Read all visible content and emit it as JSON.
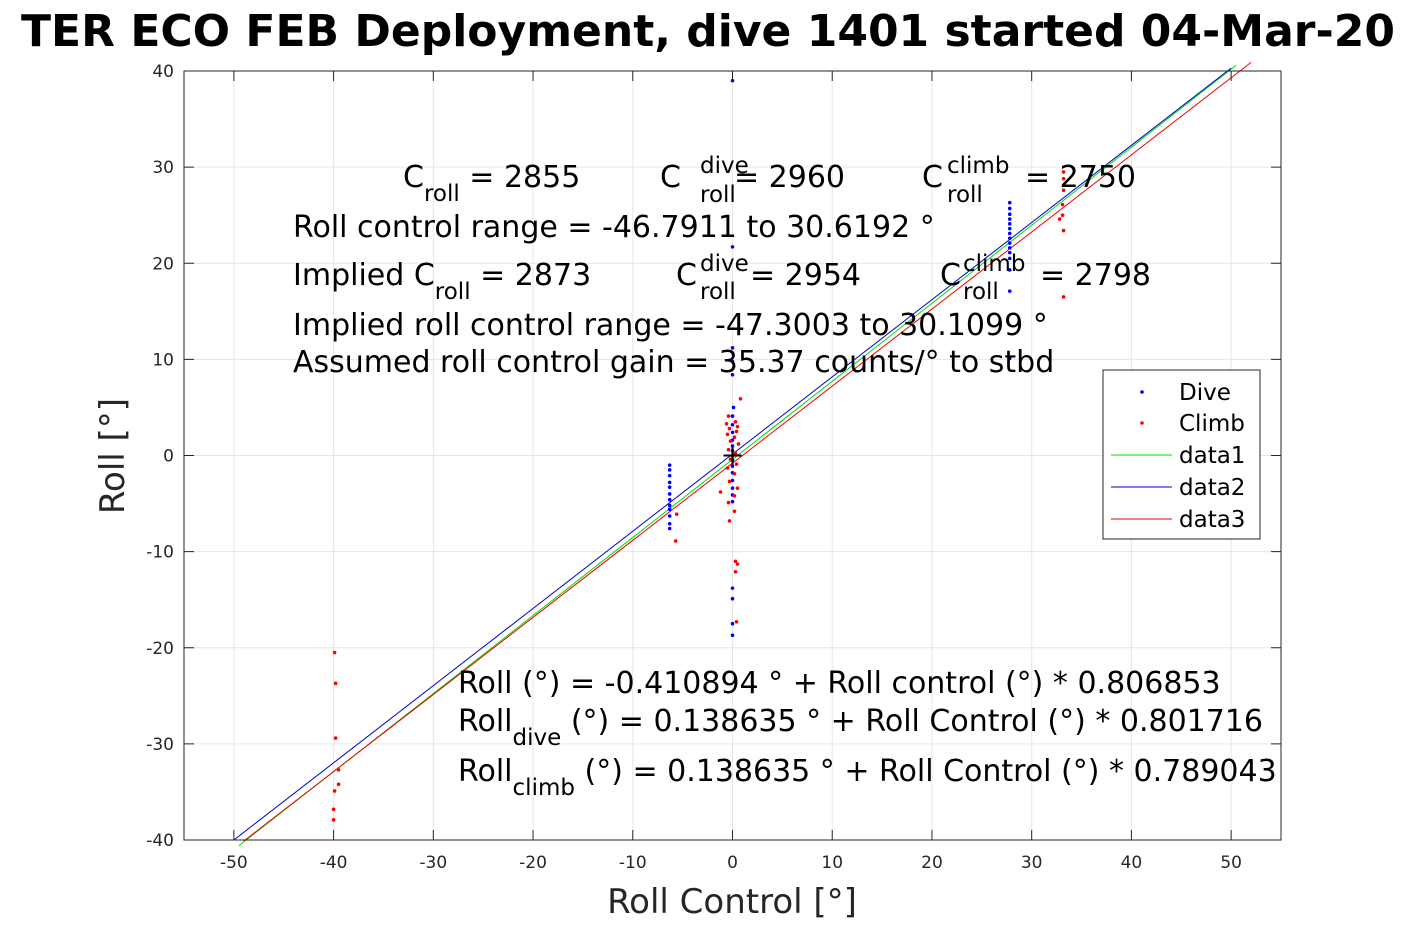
{
  "chart_data": {
    "type": "scatter",
    "title": "TER ECO FEB Deployment, dive 1401 started 04-Mar-20",
    "xlabel": "Roll Control [°]",
    "ylabel": "Roll [°]",
    "xlim": [
      -55,
      55
    ],
    "ylim": [
      -40,
      40
    ],
    "xticks": [
      -50,
      -40,
      -30,
      -20,
      -10,
      0,
      10,
      20,
      30,
      40,
      50
    ],
    "yticks": [
      -40,
      -30,
      -20,
      -10,
      0,
      10,
      20,
      30,
      40
    ],
    "grid": true,
    "legend_position": "right",
    "series": [
      {
        "name": "Dive",
        "kind": "points",
        "color": "#0000ff",
        "points": [
          [
            0,
            39
          ],
          [
            0,
            21.7
          ],
          [
            0,
            11.2
          ],
          [
            0,
            9.8
          ],
          [
            0,
            8.4
          ],
          [
            0.1,
            5
          ],
          [
            0,
            4.1
          ],
          [
            0,
            3.2
          ],
          [
            0,
            2.4
          ],
          [
            0,
            1.6
          ],
          [
            0,
            1
          ],
          [
            0,
            0.5
          ],
          [
            0,
            0
          ],
          [
            0,
            -0.5
          ],
          [
            0,
            -1.1
          ],
          [
            0,
            -1.8
          ],
          [
            0,
            -2.6
          ],
          [
            0,
            -3.4
          ],
          [
            0,
            -4.1
          ],
          [
            0,
            -4.8
          ],
          [
            0,
            -13.8
          ],
          [
            0,
            -14.9
          ],
          [
            0,
            -17.5
          ],
          [
            0,
            -18.7
          ],
          [
            -6.3,
            -1
          ],
          [
            -6.3,
            -1.5
          ],
          [
            -6.3,
            -2.1
          ],
          [
            -6.3,
            -2.8
          ],
          [
            -6.3,
            -3.3
          ],
          [
            -6.3,
            -4
          ],
          [
            -6.3,
            -4.6
          ],
          [
            -6.3,
            -5.2
          ],
          [
            -6.3,
            -5.6
          ],
          [
            -6.3,
            -6.3
          ],
          [
            -6.3,
            -7.1
          ],
          [
            -6.3,
            -7.6
          ],
          [
            27.8,
            26.3
          ],
          [
            27.8,
            25.7
          ],
          [
            27.8,
            25.1
          ],
          [
            27.8,
            24.6
          ],
          [
            27.8,
            24.1
          ],
          [
            27.8,
            23.6
          ],
          [
            27.8,
            23.1
          ],
          [
            27.8,
            22.6
          ],
          [
            27.8,
            22.1
          ],
          [
            27.8,
            21.6
          ],
          [
            27.8,
            21.1
          ],
          [
            27.8,
            20.5
          ],
          [
            27.8,
            19.3
          ],
          [
            27.8,
            17.1
          ],
          [
            27.8,
            10.1
          ]
        ]
      },
      {
        "name": "Climb",
        "kind": "points",
        "color": "#ff0000",
        "points": [
          [
            -0.4,
            4.1
          ],
          [
            0.3,
            3.5
          ],
          [
            -0.6,
            3.3
          ],
          [
            0.5,
            3
          ],
          [
            -0.3,
            2.8
          ],
          [
            0.4,
            2.5
          ],
          [
            -0.5,
            2.2
          ],
          [
            0.2,
            1.9
          ],
          [
            -0.2,
            1.5
          ],
          [
            0.6,
            1.2
          ],
          [
            -0.4,
            0.6
          ],
          [
            0.3,
            0.2
          ],
          [
            -0.2,
            -0.4
          ],
          [
            0.4,
            -0.9
          ],
          [
            -0.5,
            -1.3
          ],
          [
            0.2,
            -1.9
          ],
          [
            -0.3,
            -2.7
          ],
          [
            0.5,
            -3.4
          ],
          [
            0.2,
            -4.2
          ],
          [
            -0.4,
            -4.9
          ],
          [
            0.2,
            -5.8
          ],
          [
            -0.3,
            -6.8
          ],
          [
            0.3,
            -11
          ],
          [
            0.5,
            -11.3
          ],
          [
            0.3,
            -12.1
          ],
          [
            0.4,
            -17.3
          ],
          [
            0.8,
            5.9
          ],
          [
            -1.2,
            -3.8
          ],
          [
            -5.6,
            -6.1
          ],
          [
            -5.7,
            -8.9
          ],
          [
            -39.9,
            -20.5
          ],
          [
            -39.8,
            -23.7
          ],
          [
            -39.8,
            -29.4
          ],
          [
            -39.5,
            -32.7
          ],
          [
            -39.5,
            -34.2
          ],
          [
            -39.9,
            -34.9
          ],
          [
            -40,
            -36.8
          ],
          [
            -40,
            -37.9
          ],
          [
            33.2,
            29.5
          ],
          [
            33.2,
            28.8
          ],
          [
            33.2,
            27.6
          ],
          [
            33.1,
            26.1
          ],
          [
            33.1,
            25
          ],
          [
            32.8,
            24.6
          ],
          [
            33.2,
            23.4
          ],
          [
            33.2,
            16.5
          ]
        ]
      },
      {
        "name": "data1",
        "kind": "line",
        "color": "#00dd00",
        "x": [
          -49.5,
          50.5
        ],
        "y": [
          -40.6,
          40.6
        ]
      },
      {
        "name": "data2",
        "kind": "line",
        "color": "#0000cc",
        "x": [
          -50,
          50
        ],
        "y": [
          -40,
          40.3
        ]
      },
      {
        "name": "data3",
        "kind": "line",
        "color": "#ee0000",
        "x": [
          -49,
          52
        ],
        "y": [
          -40.1,
          40.9
        ]
      }
    ],
    "center_marker": {
      "x": 0,
      "y": 0,
      "symbol": "+"
    },
    "annotations": {
      "c_roll": {
        "base": "C",
        "sub": "roll",
        "rest": " = 2855"
      },
      "c_roll_dive": {
        "base": "C",
        "sup": "dive",
        "sub": "roll",
        "rest": " = 2960"
      },
      "c_roll_climb": {
        "base": "C",
        "sup": "climb",
        "sub": "roll",
        "rest": " = 2750"
      },
      "control_range": "Roll control range = -46.7911 to 30.6192 °",
      "implied_c_roll": {
        "prefix": "Implied C",
        "sub": "roll",
        "rest": " = 2873"
      },
      "implied_c_roll_dive": {
        "base": "C",
        "sup": "dive",
        "sub": "roll",
        "rest": " = 2954"
      },
      "implied_c_roll_climb": {
        "base": "C",
        "sup": "climb",
        "sub": "roll",
        "rest": " = 2798"
      },
      "implied_range": "Implied roll control range = -47.3003 to 30.1099 °",
      "gain": "Assumed roll control gain = 35.37 counts/° to stbd",
      "fit_all": "Roll (°) = -0.410894 ° + Roll control (°) * 0.806853",
      "fit_dive": {
        "base": "Roll",
        "sub": "dive",
        "rest": " (°) = 0.138635 ° + Roll Control (°) * 0.801716"
      },
      "fit_climb": {
        "base": "Roll",
        "sub": "climb",
        "rest": " (°) = 0.138635 ° + Roll Control (°) * 0.789043"
      }
    }
  }
}
